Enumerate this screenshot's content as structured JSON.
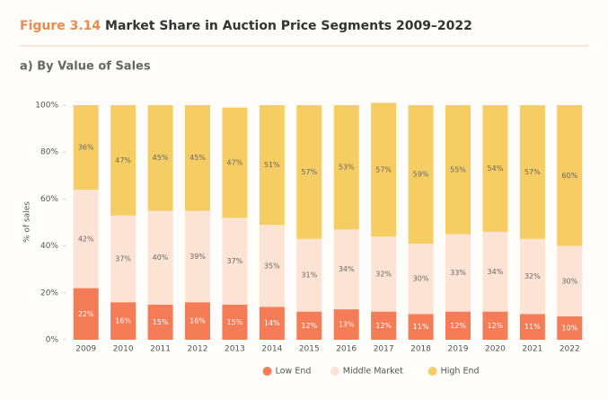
{
  "chart_data": {
    "type": "stacked_bar",
    "figure_label": "Figure 3.14",
    "title": "Market Share in Auction Price Segments 2009–2022",
    "subtitle": "a) By Value of Sales",
    "y_label": "% of sales",
    "categories": [
      "2009",
      "2010",
      "2011",
      "2012",
      "2013",
      "2014",
      "2015",
      "2016",
      "2017",
      "2018",
      "2019",
      "2020",
      "2021",
      "2022"
    ],
    "series": [
      {
        "name": "Low End",
        "color": "#f47c56",
        "values": [
          22,
          16,
          15,
          16,
          15,
          14,
          12,
          13,
          12,
          11,
          12,
          12,
          11,
          10
        ],
        "value_labels": [
          "22%",
          "16%",
          "15%",
          "16%",
          "15%",
          "14%",
          "12%",
          "13%",
          "12%",
          "11%",
          "12%",
          "12%",
          "11%",
          "10%"
        ]
      },
      {
        "name": "Middle Market",
        "color": "#fde3d3",
        "values": [
          42,
          37,
          40,
          39,
          37,
          35,
          31,
          34,
          32,
          30,
          33,
          34,
          32,
          30
        ],
        "value_labels": [
          "42%",
          "37%",
          "40%",
          "39%",
          "37%",
          "35%",
          "31%",
          "34%",
          "32%",
          "30%",
          "33%",
          "34%",
          "32%",
          "30%"
        ]
      },
      {
        "name": "High End",
        "color": "#f5cd63",
        "values": [
          36,
          47,
          45,
          45,
          47,
          51,
          57,
          53,
          57,
          59,
          55,
          54,
          57,
          60
        ],
        "value_labels": [
          "36%",
          "47%",
          "45%",
          "45%",
          "47%",
          "51%",
          "57%",
          "53%",
          "57%",
          "59%",
          "55%",
          "54%",
          "57%",
          "60%"
        ]
      }
    ],
    "ylim": [
      0,
      100
    ],
    "yticks": [
      {
        "value": 0,
        "label": "0%"
      },
      {
        "value": 20,
        "label": "20%"
      },
      {
        "value": 40,
        "label": "40%"
      },
      {
        "value": 60,
        "label": "60%"
      },
      {
        "value": 80,
        "label": "80%"
      },
      {
        "value": 100,
        "label": "100%"
      }
    ],
    "legend": "bottom"
  }
}
